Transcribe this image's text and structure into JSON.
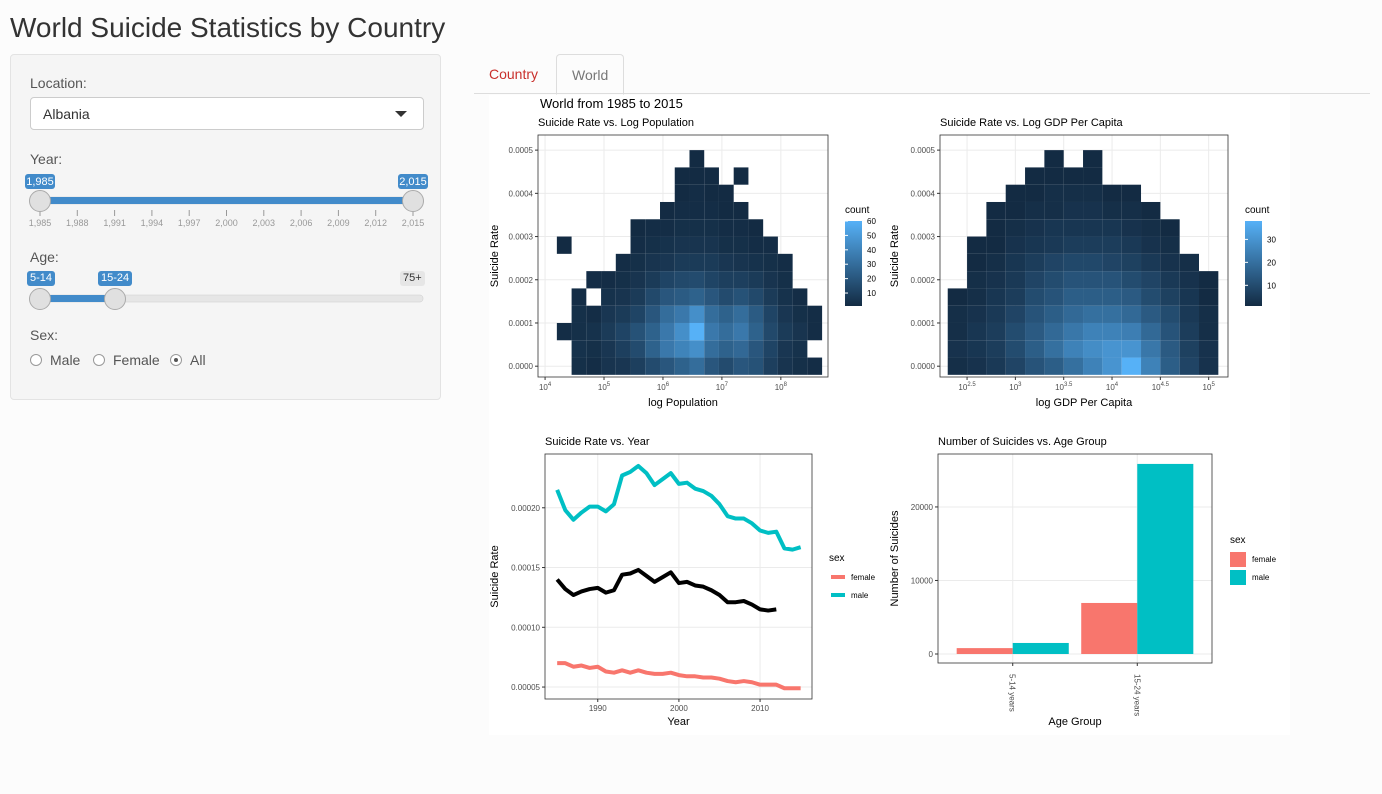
{
  "header": {
    "title": "World Suicide Statistics by Country"
  },
  "sidebar": {
    "location": {
      "label": "Location:",
      "selected": "Albania"
    },
    "year": {
      "label": "Year:",
      "from": {
        "value": 1985,
        "label": "1,985"
      },
      "to": {
        "value": 2015,
        "label": "2,015"
      },
      "ticks": [
        {
          "value": 1985,
          "label": "1,985"
        },
        {
          "value": 1988,
          "label": "1,988"
        },
        {
          "value": 1991,
          "label": "1,991"
        },
        {
          "value": 1994,
          "label": "1,994"
        },
        {
          "value": 1997,
          "label": "1,997"
        },
        {
          "value": 2000,
          "label": "2,000"
        },
        {
          "value": 2003,
          "label": "2,003"
        },
        {
          "value": 2006,
          "label": "2,006"
        },
        {
          "value": 2009,
          "label": "2,009"
        },
        {
          "value": 2012,
          "label": "2,012"
        },
        {
          "value": 2015,
          "label": "2,015"
        }
      ]
    },
    "age": {
      "label": "Age:",
      "from": "5-14",
      "to": "15-24",
      "max": "75+"
    },
    "sex": {
      "label": "Sex:",
      "options": [
        "Male",
        "Female",
        "All"
      ],
      "selected": 2
    }
  },
  "tabs": [
    "Country",
    "World"
  ],
  "active_tab": 1,
  "page_title": "World from 1985 to 2015",
  "chart_data": [
    {
      "type": "heatmap",
      "title": "Suicide Rate vs. Log Population",
      "xlabel": "log Population",
      "ylabel": "Suicide Rate",
      "xlim": [
        3.88,
        8.8
      ],
      "ylim": [
        -2.5e-05,
        0.000535
      ],
      "tick_base": "10",
      "xticks": [
        4,
        5,
        6,
        7,
        8
      ],
      "yticks": [
        {
          "value": 0,
          "label": "0.0000"
        },
        0.0001,
        0.0002,
        0.0003,
        0.0004,
        0.0005
      ],
      "grid": true,
      "legend_title": "count",
      "colors": [
        "#132B43",
        "#56B1F7"
      ],
      "color_limits": [
        1,
        60
      ],
      "legend_ticks": [
        10,
        20,
        30,
        40,
        50,
        60
      ],
      "xbins": [
        4.2,
        4.45,
        4.7,
        4.95,
        5.2,
        5.45,
        5.7,
        5.95,
        6.2,
        6.45,
        6.7,
        6.95,
        7.2,
        7.45,
        7.7,
        7.95,
        8.2,
        8.45,
        8.7
      ],
      "ybins": [
        -2e-05,
        2e-05,
        6e-05,
        0.0001,
        0.00014,
        0.00018,
        0.00022,
        0.00026,
        0.0003,
        0.00034,
        0.00038,
        0.00042,
        0.00046,
        0.0005
      ],
      "counts": [
        [
          null,
          3,
          2,
          5,
          6,
          10,
          15,
          20,
          25,
          30,
          20,
          15,
          20,
          18,
          10,
          5,
          3,
          2
        ],
        [
          null,
          4,
          3,
          6,
          10,
          15,
          25,
          35,
          40,
          45,
          30,
          25,
          28,
          20,
          12,
          6,
          4,
          null
        ],
        [
          2,
          3,
          4,
          8,
          12,
          18,
          25,
          35,
          45,
          60,
          35,
          30,
          35,
          25,
          14,
          8,
          5,
          2
        ],
        [
          null,
          3,
          2,
          6,
          8,
          12,
          20,
          30,
          35,
          45,
          30,
          25,
          30,
          22,
          12,
          6,
          3,
          2
        ],
        [
          null,
          2,
          null,
          4,
          5,
          8,
          14,
          20,
          22,
          25,
          20,
          15,
          18,
          14,
          8,
          4,
          2,
          null
        ],
        [
          null,
          null,
          2,
          2,
          3,
          5,
          8,
          12,
          14,
          15,
          12,
          10,
          10,
          8,
          5,
          3,
          null,
          null
        ],
        [
          null,
          null,
          null,
          null,
          2,
          3,
          5,
          6,
          8,
          8,
          8,
          6,
          5,
          4,
          3,
          2,
          null,
          null
        ],
        [
          1,
          null,
          null,
          null,
          null,
          2,
          3,
          4,
          5,
          5,
          5,
          3,
          3,
          2,
          2,
          null,
          null,
          null
        ],
        [
          null,
          null,
          null,
          null,
          null,
          1,
          2,
          2,
          3,
          3,
          3,
          2,
          2,
          1,
          null,
          null,
          null,
          null
        ],
        [
          null,
          null,
          null,
          null,
          null,
          null,
          null,
          1,
          2,
          2,
          2,
          1,
          1,
          null,
          null,
          null,
          null,
          null
        ],
        [
          null,
          null,
          null,
          null,
          null,
          null,
          null,
          null,
          1,
          2,
          1,
          1,
          null,
          null,
          null,
          null,
          null,
          null
        ],
        [
          null,
          null,
          null,
          null,
          null,
          null,
          null,
          null,
          1,
          1,
          1,
          null,
          1,
          null,
          null,
          null,
          null,
          null
        ],
        [
          null,
          null,
          null,
          null,
          null,
          null,
          null,
          null,
          null,
          1,
          null,
          null,
          null,
          null,
          null,
          null,
          null,
          null
        ]
      ]
    },
    {
      "type": "heatmap",
      "title": "Suicide Rate vs. Log GDP Per Capita",
      "xlabel": "log GDP Per Capita",
      "ylabel": "Suicide Rate",
      "xlim": [
        2.22,
        5.2
      ],
      "ylim": [
        -2.5e-05,
        0.000535
      ],
      "tick_base": "10",
      "xticks": [
        2.5,
        3,
        3.5,
        4,
        4.5,
        5
      ],
      "yticks": [
        {
          "value": 0,
          "label": "0.0000"
        },
        0.0001,
        0.0002,
        0.0003,
        0.0004,
        0.0005
      ],
      "grid": true,
      "legend_title": "count",
      "colors": [
        "#132B43",
        "#56B1F7"
      ],
      "color_limits": [
        1,
        38
      ],
      "legend_ticks": [
        10,
        20,
        30
      ],
      "xbins": [
        2.3,
        2.5,
        2.7,
        2.9,
        3.1,
        3.3,
        3.5,
        3.7,
        3.9,
        4.1,
        4.3,
        4.5,
        4.7,
        4.9,
        5.1
      ],
      "ybins": [
        -2e-05,
        2e-05,
        6e-05,
        0.0001,
        0.00014,
        0.00018,
        0.00022,
        0.00026,
        0.0003,
        0.00034,
        0.00038,
        0.00042,
        0.00046,
        0.0005
      ],
      "counts": [
        [
          2,
          3,
          5,
          8,
          12,
          15,
          20,
          25,
          30,
          38,
          25,
          15,
          8,
          3
        ],
        [
          3,
          4,
          6,
          10,
          15,
          20,
          25,
          28,
          30,
          30,
          22,
          14,
          7,
          3
        ],
        [
          2,
          4,
          6,
          10,
          14,
          18,
          22,
          25,
          25,
          24,
          18,
          12,
          6,
          2
        ],
        [
          2,
          3,
          5,
          8,
          12,
          15,
          18,
          20,
          20,
          18,
          14,
          10,
          5,
          2
        ],
        [
          1,
          2,
          4,
          6,
          10,
          12,
          15,
          15,
          15,
          14,
          10,
          7,
          4,
          1
        ],
        [
          null,
          2,
          3,
          5,
          8,
          10,
          12,
          12,
          12,
          10,
          8,
          5,
          3,
          1
        ],
        [
          null,
          1,
          2,
          4,
          6,
          8,
          9,
          9,
          8,
          7,
          5,
          3,
          2,
          null
        ],
        [
          null,
          1,
          1,
          3,
          4,
          5,
          6,
          6,
          6,
          5,
          3,
          2,
          null,
          null
        ],
        [
          null,
          null,
          1,
          2,
          3,
          4,
          4,
          4,
          4,
          3,
          2,
          1,
          null,
          null
        ],
        [
          null,
          null,
          1,
          1,
          2,
          2,
          3,
          3,
          2,
          2,
          1,
          null,
          null,
          null
        ],
        [
          null,
          null,
          null,
          1,
          1,
          2,
          2,
          2,
          1,
          1,
          null,
          null,
          null,
          null
        ],
        [
          null,
          null,
          null,
          null,
          1,
          1,
          1,
          1,
          null,
          null,
          null,
          null,
          null,
          null
        ],
        [
          null,
          null,
          null,
          null,
          null,
          1,
          null,
          1,
          null,
          null,
          null,
          null,
          null,
          null
        ]
      ]
    },
    {
      "type": "line",
      "title": "Suicide Rate vs. Year",
      "xlabel": "Year",
      "ylabel": "Suicide Rate",
      "xlim": [
        1983.5,
        2016.4
      ],
      "ylim": [
        4e-05,
        0.000245
      ],
      "xticks": [
        1990,
        2000,
        2010
      ],
      "yticks": [
        5e-05,
        {
          "value": 0.0001,
          "label": "0.00010"
        },
        0.00015,
        {
          "value": 0.0002,
          "label": "0.00020"
        }
      ],
      "grid": true,
      "legend_title": "sex",
      "x": [
        1985,
        1986,
        1987,
        1988,
        1989,
        1990,
        1991,
        1992,
        1993,
        1994,
        1995,
        1996,
        1997,
        1998,
        1999,
        2000,
        2001,
        2002,
        2003,
        2004,
        2005,
        2006,
        2007,
        2008,
        2009,
        2010,
        2011,
        2012,
        2013,
        2014,
        2015
      ],
      "series": [
        {
          "color": "#000000",
          "values": [
            0.00014,
            0.000132,
            0.000127,
            0.00013,
            0.000132,
            0.000133,
            0.000129,
            0.000131,
            0.000144,
            0.000145,
            0.000148,
            0.000143,
            0.000138,
            0.000142,
            0.000146,
            0.000137,
            0.000138,
            0.000135,
            0.000134,
            0.000131,
            0.000127,
            0.000121,
            0.000121,
            0.000122,
            0.000119,
            0.000115,
            0.000114,
            0.000115,
            null,
            null,
            null
          ]
        },
        {
          "name": "female",
          "color": "#F8766D",
          "values": [
            7e-05,
            7e-05,
            6.7e-05,
            6.8e-05,
            6.6e-05,
            6.7e-05,
            6.3e-05,
            6.2e-05,
            6.4e-05,
            6.2e-05,
            6.4e-05,
            6.2e-05,
            6.1e-05,
            6.1e-05,
            6.2e-05,
            6e-05,
            5.9e-05,
            5.9e-05,
            5.8e-05,
            5.8e-05,
            5.7e-05,
            5.5e-05,
            5.4e-05,
            5.5e-05,
            5.4e-05,
            5.2e-05,
            5.2e-05,
            5.2e-05,
            4.9e-05,
            4.9e-05,
            4.9e-05
          ]
        },
        {
          "name": "male",
          "color": "#00BFC4",
          "values": [
            0.000215,
            0.000198,
            0.00019,
            0.000196,
            0.000201,
            0.000201,
            0.000197,
            0.000203,
            0.000227,
            0.00023,
            0.000235,
            0.000229,
            0.000219,
            0.000224,
            0.000229,
            0.00022,
            0.000221,
            0.000216,
            0.000214,
            0.00021,
            0.000203,
            0.000193,
            0.000191,
            0.000191,
            0.000187,
            0.000181,
            0.000179,
            0.00018,
            0.000166,
            0.000165,
            0.000167
          ]
        }
      ]
    },
    {
      "type": "bar",
      "title": "Number of Suicides vs. Age Group",
      "xlabel": "Age Group",
      "ylabel": "Number of Suicides",
      "ylim": [
        -1225,
        27200
      ],
      "yticks": [
        0,
        10000,
        20000
      ],
      "grid": true,
      "legend_title": "sex",
      "categories": [
        "5-14 years",
        "15-24 years"
      ],
      "series": [
        {
          "name": "female",
          "color": "#F8766D",
          "values": [
            800,
            6940
          ]
        },
        {
          "name": "male",
          "color": "#00BFC4",
          "values": [
            1500,
            25850
          ]
        }
      ]
    }
  ]
}
